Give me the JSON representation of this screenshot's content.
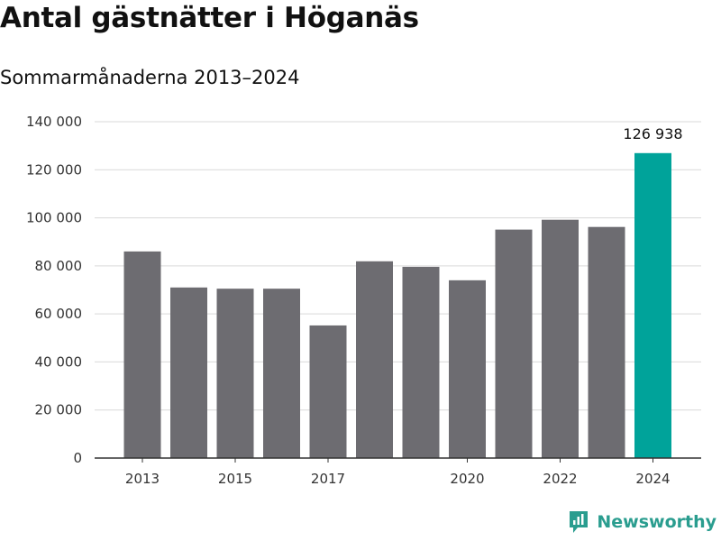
{
  "title": "Antal gästnätter i Höganäs",
  "subtitle": "Sommarmånaderna 2013–2024",
  "brand": "Newsworthy",
  "colors": {
    "bar": "#6d6c71",
    "highlight": "#00a39a",
    "brand": "#2a9d8f"
  },
  "chart_data": {
    "type": "bar",
    "title": "Antal gästnätter i Höganäs",
    "subtitle": "Sommarmånaderna 2013–2024",
    "categories": [
      "2013",
      "2014",
      "2015",
      "2016",
      "2017",
      "2018",
      "2019",
      "2020",
      "2021",
      "2022",
      "2023",
      "2024"
    ],
    "values": [
      86000,
      71000,
      70500,
      70500,
      55200,
      81900,
      79600,
      74000,
      95100,
      99200,
      96200,
      126938
    ],
    "highlight_index": 11,
    "x_tick_labels": [
      "2013",
      "2015",
      "2017",
      "2020",
      "2022",
      "2024"
    ],
    "y_ticks": [
      0,
      20000,
      40000,
      60000,
      80000,
      100000,
      120000,
      140000
    ],
    "y_tick_labels": [
      "0",
      "20 000",
      "40 000",
      "60 000",
      "80 000",
      "100 000",
      "120 000",
      "140 000"
    ],
    "ylim": [
      0,
      140000
    ],
    "grid": true,
    "data_labels": [
      {
        "index": 11,
        "text": "126 938"
      }
    ],
    "xlabel": "",
    "ylabel": ""
  }
}
